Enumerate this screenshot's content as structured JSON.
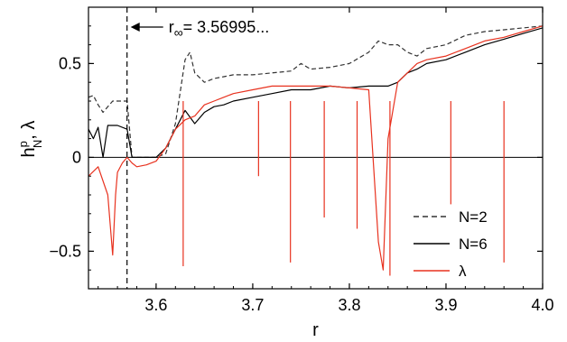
{
  "chart_data": {
    "type": "line",
    "xlabel": "r",
    "ylabel_main": "h",
    "ylabel_sup": "p",
    "ylabel_sub": "N",
    "ylabel_rest": ",  λ",
    "xlim": [
      3.53,
      4.0
    ],
    "ylim": [
      -0.7,
      0.8
    ],
    "xticks": [
      3.6,
      3.7,
      3.8,
      3.9,
      4.0
    ],
    "xtick_labels": [
      "3.6",
      "3.7",
      "3.8",
      "3.9",
      "4.0"
    ],
    "yticks": [
      -0.5,
      0,
      0.5
    ],
    "ytick_labels": [
      "−0.5",
      "0",
      "0.5"
    ],
    "annotation": {
      "text": "= 3.56995...",
      "symbol": "r",
      "symbol_sub": "∞",
      "x": 3.5699
    },
    "legend": {
      "position": "bottom-right",
      "entries": [
        "N=2",
        "N=6",
        "λ"
      ]
    },
    "series": [
      {
        "name": "N=2",
        "color": "#333333",
        "style": "dashed",
        "x": [
          3.53,
          3.535,
          3.54,
          3.545,
          3.55,
          3.555,
          3.56,
          3.565,
          3.57,
          3.575,
          3.58,
          3.59,
          3.6,
          3.61,
          3.62,
          3.63,
          3.635,
          3.64,
          3.65,
          3.66,
          3.67,
          3.68,
          3.7,
          3.72,
          3.74,
          3.75,
          3.76,
          3.78,
          3.8,
          3.82,
          3.83,
          3.84,
          3.85,
          3.86,
          3.87,
          3.88,
          3.9,
          3.92,
          3.94,
          3.96,
          3.98,
          4.0
        ],
        "y": [
          0.32,
          0.33,
          0.28,
          0.24,
          0.27,
          0.3,
          0.3,
          0.3,
          0.3,
          0.0,
          0.0,
          0.0,
          0.0,
          0.02,
          0.18,
          0.52,
          0.56,
          0.45,
          0.4,
          0.42,
          0.43,
          0.44,
          0.44,
          0.45,
          0.46,
          0.5,
          0.47,
          0.48,
          0.5,
          0.56,
          0.62,
          0.6,
          0.6,
          0.56,
          0.54,
          0.58,
          0.6,
          0.65,
          0.67,
          0.68,
          0.69,
          0.7
        ]
      },
      {
        "name": "N=6",
        "color": "#000000",
        "style": "solid",
        "x": [
          3.53,
          3.535,
          3.54,
          3.545,
          3.55,
          3.56,
          3.57,
          3.575,
          3.58,
          3.59,
          3.6,
          3.61,
          3.62,
          3.63,
          3.64,
          3.65,
          3.66,
          3.67,
          3.68,
          3.7,
          3.72,
          3.74,
          3.76,
          3.78,
          3.8,
          3.82,
          3.84,
          3.85,
          3.86,
          3.87,
          3.88,
          3.9,
          3.92,
          3.94,
          3.96,
          3.98,
          4.0
        ],
        "y": [
          0.15,
          0.1,
          0.16,
          0.0,
          0.17,
          0.17,
          0.15,
          0.0,
          0.0,
          0.0,
          0.0,
          0.05,
          0.15,
          0.25,
          0.18,
          0.24,
          0.27,
          0.28,
          0.3,
          0.32,
          0.34,
          0.36,
          0.36,
          0.38,
          0.37,
          0.38,
          0.38,
          0.4,
          0.45,
          0.47,
          0.5,
          0.52,
          0.56,
          0.6,
          0.63,
          0.66,
          0.69
        ]
      },
      {
        "name": "λ",
        "color": "#e8321f",
        "style": "solid",
        "x": [
          3.53,
          3.54,
          3.55,
          3.555,
          3.558,
          3.56,
          3.565,
          3.57,
          3.575,
          3.58,
          3.59,
          3.6,
          3.61,
          3.62,
          3.63,
          3.64,
          3.65,
          3.66,
          3.67,
          3.68,
          3.7,
          3.72,
          3.74,
          3.76,
          3.78,
          3.8,
          3.82,
          3.83,
          3.835,
          3.84,
          3.85,
          3.86,
          3.87,
          3.88,
          3.9,
          3.92,
          3.94,
          3.96,
          3.98,
          4.0
        ],
        "y": [
          -0.1,
          -0.05,
          -0.2,
          -0.52,
          -0.2,
          -0.08,
          -0.03,
          0.0,
          -0.03,
          -0.05,
          -0.04,
          -0.02,
          0.05,
          0.15,
          0.2,
          0.22,
          0.28,
          0.3,
          0.32,
          0.34,
          0.36,
          0.38,
          0.38,
          0.38,
          0.38,
          0.37,
          0.36,
          -0.45,
          -0.6,
          0.1,
          0.4,
          0.45,
          0.5,
          0.52,
          0.54,
          0.58,
          0.62,
          0.64,
          0.67,
          0.7
        ]
      }
    ],
    "dips_lambda": [
      {
        "x": 3.628,
        "y": -0.58
      },
      {
        "x": 3.706,
        "y": -0.1
      },
      {
        "x": 3.739,
        "y": -0.56
      },
      {
        "x": 3.774,
        "y": -0.32
      },
      {
        "x": 3.808,
        "y": -0.38
      },
      {
        "x": 3.842,
        "y": -0.63
      },
      {
        "x": 3.905,
        "y": -0.25
      },
      {
        "x": 3.96,
        "y": -0.56
      }
    ]
  }
}
